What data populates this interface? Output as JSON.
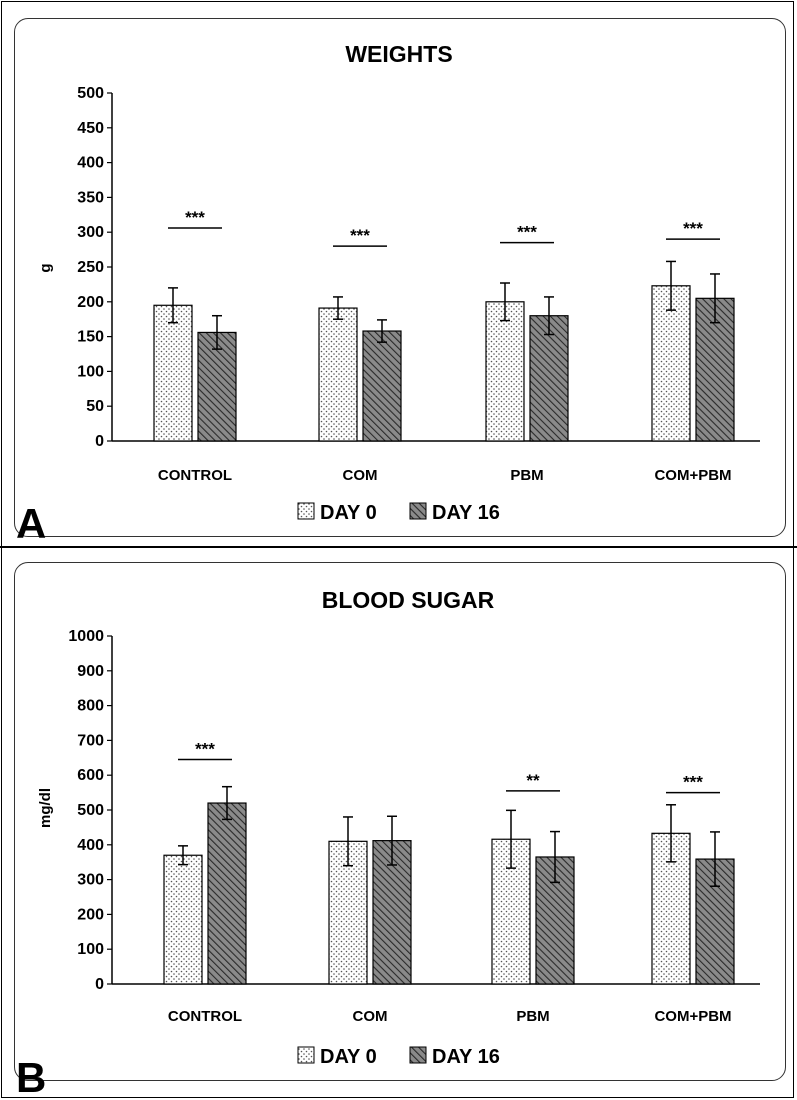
{
  "panel_labels": [
    "A",
    "B"
  ],
  "chart_data": [
    {
      "type": "bar",
      "title": "WEIGHTS",
      "xlabel": "",
      "ylabel": "g",
      "ylim": [
        0,
        500
      ],
      "yticks": [
        "500",
        "450",
        "400",
        "350",
        "300",
        "250",
        "200",
        "150",
        "100",
        "50",
        "0"
      ],
      "categories": [
        "CONTROL",
        "COM",
        "PBM",
        "COM+PBM"
      ],
      "series": [
        {
          "name": "DAY 0",
          "pattern": "dots",
          "values": [
            195,
            191,
            200,
            223
          ],
          "errors": [
            25,
            16,
            27,
            35
          ]
        },
        {
          "name": "DAY 16",
          "pattern": "hatch",
          "values": [
            156,
            158,
            180,
            205
          ],
          "errors": [
            24,
            16,
            27,
            35
          ]
        }
      ],
      "significance": [
        "***",
        "***",
        "***",
        "***"
      ],
      "significance_y": [
        306,
        280,
        285,
        290
      ],
      "legend_position": "bottom-center",
      "grid": false
    },
    {
      "type": "bar",
      "title": "BLOOD SUGAR",
      "xlabel": "",
      "ylabel": "mg/dl",
      "ylim": [
        0,
        1000
      ],
      "yticks": [
        "1000",
        "900",
        "800",
        "700",
        "600",
        "500",
        "400",
        "300",
        "200",
        "100",
        "0"
      ],
      "categories": [
        "CONTROL",
        "COM",
        "PBM",
        "COM+PBM"
      ],
      "series": [
        {
          "name": "DAY 0",
          "pattern": "dots",
          "values": [
            370,
            410,
            416,
            433
          ],
          "errors": [
            27,
            70,
            83,
            82
          ]
        },
        {
          "name": "DAY 16",
          "pattern": "hatch",
          "values": [
            520,
            412,
            365,
            359
          ],
          "errors": [
            47,
            70,
            73,
            78
          ]
        }
      ],
      "significance": [
        "***",
        "",
        "**",
        "***"
      ],
      "significance_y": [
        645,
        null,
        555,
        550
      ],
      "legend_position": "bottom-center",
      "grid": false
    }
  ],
  "colors": {
    "day0_fill": "#ffffff",
    "day16_fill": "#6f6f6f",
    "axis": "#000000",
    "stroke": "#000000"
  }
}
